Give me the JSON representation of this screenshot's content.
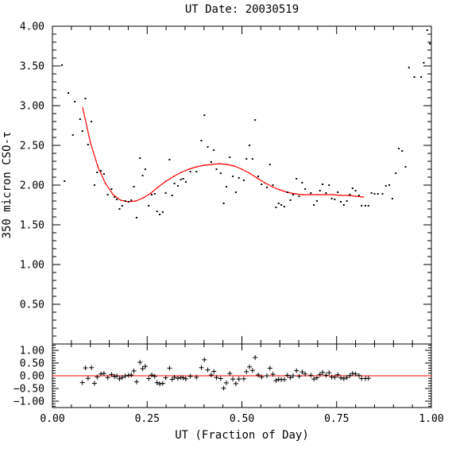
{
  "chart_data": [
    {
      "type": "scatter",
      "title": "UT Date: 20030519",
      "xlabel": "UT (Fraction of Day)",
      "ylabel": "350 micron CSO-τ",
      "xlim": [
        0.0,
        1.0
      ],
      "ylim": [
        0.0,
        4.0
      ],
      "xticks": [
        "0.00",
        "0.25",
        "0.50",
        "0.75",
        "1.00"
      ],
      "yticks": [
        "0.50",
        "1.00",
        "1.50",
        "2.00",
        "2.50",
        "3.00",
        "3.50",
        "4.00"
      ],
      "marker": "dot",
      "fit_color": "#ff0000",
      "series": [
        {
          "points": [
            [
              0.025,
              3.51
            ],
            [
              0.032,
              2.05
            ],
            [
              0.042,
              3.16
            ],
            [
              0.054,
              2.63
            ],
            [
              0.059,
              3.05
            ],
            [
              0.073,
              2.83
            ],
            [
              0.079,
              2.68
            ],
            [
              0.087,
              3.09
            ],
            [
              0.094,
              2.51
            ],
            [
              0.103,
              2.8
            ],
            [
              0.111,
              2.0
            ],
            [
              0.118,
              2.16
            ],
            [
              0.128,
              2.18
            ],
            [
              0.136,
              2.14
            ],
            [
              0.146,
              1.88
            ],
            [
              0.156,
              1.95
            ],
            [
              0.164,
              1.85
            ],
            [
              0.17,
              1.82
            ],
            [
              0.177,
              1.7
            ],
            [
              0.184,
              1.74
            ],
            [
              0.192,
              1.8
            ],
            [
              0.201,
              1.79
            ],
            [
              0.208,
              1.81
            ],
            [
              0.215,
              1.98
            ],
            [
              0.222,
              1.59
            ],
            [
              0.231,
              2.34
            ],
            [
              0.238,
              2.12
            ],
            [
              0.245,
              2.2
            ],
            [
              0.254,
              1.74
            ],
            [
              0.262,
              1.88
            ],
            [
              0.27,
              1.89
            ],
            [
              0.276,
              1.67
            ],
            [
              0.283,
              1.63
            ],
            [
              0.291,
              1.66
            ],
            [
              0.299,
              1.9
            ],
            [
              0.309,
              2.32
            ],
            [
              0.316,
              1.87
            ],
            [
              0.322,
              2.02
            ],
            [
              0.331,
              1.99
            ],
            [
              0.339,
              2.07
            ],
            [
              0.345,
              2.08
            ],
            [
              0.352,
              2.04
            ],
            [
              0.364,
              2.17
            ],
            [
              0.38,
              2.17
            ],
            [
              0.393,
              2.56
            ],
            [
              0.401,
              2.88
            ],
            [
              0.41,
              2.48
            ],
            [
              0.419,
              2.29
            ],
            [
              0.426,
              2.44
            ],
            [
              0.433,
              2.2
            ],
            [
              0.444,
              2.15
            ],
            [
              0.452,
              1.77
            ],
            [
              0.459,
              1.98
            ],
            [
              0.468,
              2.35
            ],
            [
              0.476,
              2.11
            ],
            [
              0.484,
              1.91
            ],
            [
              0.492,
              2.09
            ],
            [
              0.505,
              2.06
            ],
            [
              0.512,
              2.33
            ],
            [
              0.52,
              2.5
            ],
            [
              0.528,
              2.33
            ],
            [
              0.535,
              2.82
            ],
            [
              0.543,
              2.11
            ],
            [
              0.552,
              2.01
            ],
            [
              0.566,
              1.97
            ],
            [
              0.574,
              2.26
            ],
            [
              0.582,
              2.0
            ],
            [
              0.59,
              1.72
            ],
            [
              0.597,
              1.77
            ],
            [
              0.604,
              1.75
            ],
            [
              0.612,
              1.73
            ],
            [
              0.62,
              1.91
            ],
            [
              0.628,
              1.81
            ],
            [
              0.635,
              1.88
            ],
            [
              0.644,
              2.08
            ],
            [
              0.651,
              1.86
            ],
            [
              0.659,
              2.03
            ],
            [
              0.667,
              1.95
            ],
            [
              0.682,
              1.9
            ],
            [
              0.69,
              1.75
            ],
            [
              0.698,
              1.8
            ],
            [
              0.706,
              1.93
            ],
            [
              0.713,
              2.01
            ],
            [
              0.722,
              1.9
            ],
            [
              0.73,
              2.0
            ],
            [
              0.737,
              1.83
            ],
            [
              0.745,
              1.82
            ],
            [
              0.753,
              1.91
            ],
            [
              0.761,
              1.79
            ],
            [
              0.769,
              1.75
            ],
            [
              0.777,
              1.8
            ],
            [
              0.785,
              1.88
            ],
            [
              0.792,
              1.96
            ],
            [
              0.8,
              1.93
            ],
            [
              0.809,
              1.87
            ],
            [
              0.816,
              1.74
            ],
            [
              0.826,
              1.74
            ],
            [
              0.834,
              1.74
            ],
            [
              0.842,
              1.9
            ],
            [
              0.85,
              1.89
            ],
            [
              0.859,
              1.89
            ],
            [
              0.871,
              1.89
            ],
            [
              0.88,
              1.99
            ],
            [
              0.889,
              2.0
            ],
            [
              0.897,
              1.83
            ],
            [
              0.906,
              2.15
            ],
            [
              0.914,
              2.46
            ],
            [
              0.923,
              2.43
            ],
            [
              0.932,
              2.23
            ],
            [
              0.941,
              3.48
            ],
            [
              0.955,
              3.36
            ],
            [
              0.973,
              3.36
            ],
            [
              0.98,
              3.54
            ],
            [
              0.989,
              3.95
            ],
            [
              0.996,
              3.78
            ]
          ]
        },
        {
          "fit_points": [
            [
              0.08,
              2.97
            ],
            [
              0.1,
              2.54
            ],
            [
              0.12,
              2.23
            ],
            [
              0.14,
              2.02
            ],
            [
              0.16,
              1.88
            ],
            [
              0.18,
              1.81
            ],
            [
              0.2,
              1.79
            ],
            [
              0.22,
              1.8
            ],
            [
              0.24,
              1.84
            ],
            [
              0.26,
              1.9
            ],
            [
              0.28,
              1.98
            ],
            [
              0.3,
              2.05
            ],
            [
              0.32,
              2.11
            ],
            [
              0.34,
              2.16
            ],
            [
              0.36,
              2.2
            ],
            [
              0.38,
              2.23
            ],
            [
              0.4,
              2.25
            ],
            [
              0.42,
              2.26
            ],
            [
              0.44,
              2.27
            ],
            [
              0.46,
              2.26
            ],
            [
              0.48,
              2.24
            ],
            [
              0.5,
              2.2
            ],
            [
              0.52,
              2.15
            ],
            [
              0.54,
              2.09
            ],
            [
              0.56,
              2.03
            ],
            [
              0.58,
              1.98
            ],
            [
              0.6,
              1.94
            ],
            [
              0.62,
              1.91
            ],
            [
              0.64,
              1.89
            ],
            [
              0.66,
              1.88
            ],
            [
              0.68,
              1.88
            ],
            [
              0.7,
              1.88
            ],
            [
              0.72,
              1.88
            ],
            [
              0.74,
              1.88
            ],
            [
              0.76,
              1.87
            ],
            [
              0.78,
              1.87
            ],
            [
              0.8,
              1.86
            ],
            [
              0.82,
              1.85
            ]
          ]
        }
      ]
    },
    {
      "type": "scatter",
      "xlim": [
        0.0,
        1.0
      ],
      "ylim": [
        -1.25,
        1.25
      ],
      "xticks": [
        "0.00",
        "0.25",
        "0.50",
        "0.75",
        "1.00"
      ],
      "yticks": [
        "1.00",
        "0.50",
        "0.00",
        "−0.50",
        "−1.00"
      ],
      "marker": "plus",
      "zero_line_color": "#ff0000",
      "series": [
        {
          "points": [
            [
              0.079,
              -0.27
            ],
            [
              0.087,
              0.31
            ],
            [
              0.094,
              -0.1
            ],
            [
              0.103,
              0.32
            ],
            [
              0.111,
              -0.3
            ],
            [
              0.118,
              -0.05
            ],
            [
              0.128,
              0.07
            ],
            [
              0.136,
              0.09
            ],
            [
              0.146,
              -0.07
            ],
            [
              0.156,
              0.05
            ],
            [
              0.164,
              -0.03
            ],
            [
              0.17,
              -0.01
            ],
            [
              0.177,
              -0.12
            ],
            [
              0.184,
              -0.07
            ],
            [
              0.192,
              -0.01
            ],
            [
              0.201,
              0.02
            ],
            [
              0.208,
              0.03
            ],
            [
              0.215,
              0.19
            ],
            [
              0.222,
              -0.24
            ],
            [
              0.231,
              0.53
            ],
            [
              0.238,
              0.28
            ],
            [
              0.245,
              0.37
            ],
            [
              0.254,
              -0.11
            ],
            [
              0.262,
              0.03
            ],
            [
              0.27,
              -0.02
            ],
            [
              0.276,
              -0.27
            ],
            [
              0.283,
              -0.32
            ],
            [
              0.291,
              -0.3
            ],
            [
              0.299,
              -0.08
            ],
            [
              0.309,
              0.3
            ],
            [
              0.316,
              -0.14
            ],
            [
              0.322,
              -0.06
            ],
            [
              0.331,
              -0.1
            ],
            [
              0.339,
              -0.07
            ],
            [
              0.345,
              -0.08
            ],
            [
              0.352,
              -0.12
            ],
            [
              0.364,
              -0.02
            ],
            [
              0.38,
              -0.06
            ],
            [
              0.393,
              0.32
            ],
            [
              0.401,
              0.63
            ],
            [
              0.41,
              0.23
            ],
            [
              0.419,
              0.03
            ],
            [
              0.426,
              0.17
            ],
            [
              0.433,
              -0.07
            ],
            [
              0.444,
              -0.11
            ],
            [
              0.452,
              -0.49
            ],
            [
              0.459,
              -0.28
            ],
            [
              0.468,
              0.09
            ],
            [
              0.476,
              -0.13
            ],
            [
              0.484,
              -0.31
            ],
            [
              0.492,
              -0.13
            ],
            [
              0.505,
              -0.12
            ],
            [
              0.512,
              0.16
            ],
            [
              0.52,
              0.35
            ],
            [
              0.528,
              0.21
            ],
            [
              0.535,
              0.72
            ],
            [
              0.543,
              0.03
            ],
            [
              0.552,
              -0.05
            ],
            [
              0.566,
              0.0
            ],
            [
              0.574,
              0.3
            ],
            [
              0.582,
              0.06
            ],
            [
              0.59,
              -0.19
            ],
            [
              0.597,
              -0.14
            ],
            [
              0.604,
              -0.15
            ],
            [
              0.612,
              -0.15
            ],
            [
              0.62,
              0.02
            ],
            [
              0.628,
              -0.07
            ],
            [
              0.635,
              0.0
            ],
            [
              0.644,
              0.2
            ],
            [
              0.651,
              -0.02
            ],
            [
              0.659,
              0.15
            ],
            [
              0.667,
              0.07
            ],
            [
              0.682,
              0.02
            ],
            [
              0.69,
              -0.13
            ],
            [
              0.698,
              -0.08
            ],
            [
              0.706,
              0.05
            ],
            [
              0.713,
              0.13
            ],
            [
              0.722,
              0.02
            ],
            [
              0.73,
              0.12
            ],
            [
              0.737,
              -0.05
            ],
            [
              0.745,
              -0.06
            ],
            [
              0.753,
              0.04
            ],
            [
              0.761,
              -0.08
            ],
            [
              0.769,
              -0.12
            ],
            [
              0.777,
              -0.07
            ],
            [
              0.785,
              0.01
            ],
            [
              0.792,
              0.09
            ],
            [
              0.8,
              0.07
            ],
            [
              0.809,
              0.01
            ],
            [
              0.816,
              -0.11
            ],
            [
              0.826,
              -0.11
            ],
            [
              0.834,
              -0.1
            ]
          ]
        }
      ]
    }
  ]
}
